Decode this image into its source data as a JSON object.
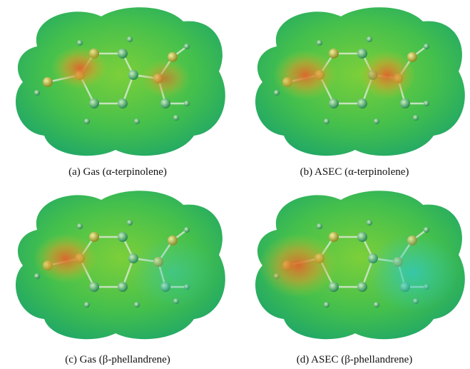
{
  "figure": {
    "panels": [
      {
        "caption": "(a) Gas (α-terpinolene)"
      },
      {
        "caption": "(b) ASEC (α-terpinolene)"
      },
      {
        "caption": "(c) Gas (β-phellandrene)"
      },
      {
        "caption": "(d) ASEC (β-phellandrene)"
      }
    ]
  }
}
